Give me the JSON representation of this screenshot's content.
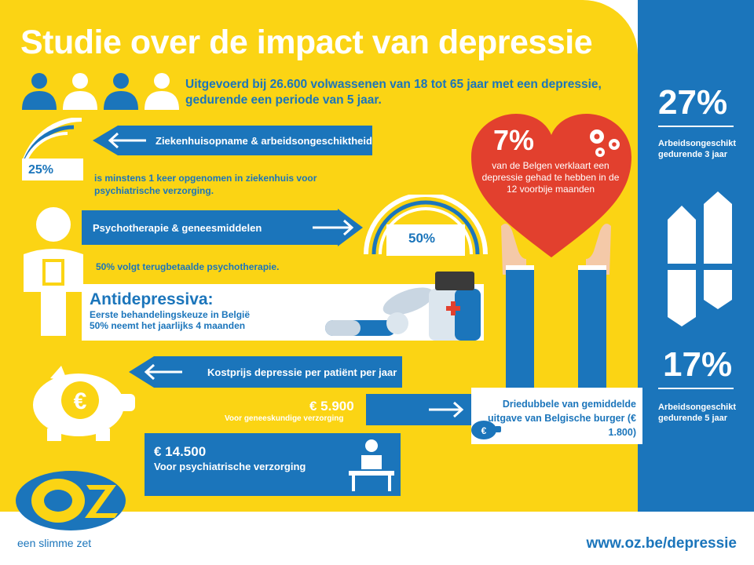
{
  "title": "Studie over de impact van depressie",
  "intro": "Uitgevoerd bij 26.600 volwassenen van 18 tot 65 jaar met een depressie, gedurende een periode van 5 jaar.",
  "hospital": {
    "bar_label": "Ziekenhuisopname & arbeidsongeschiktheid",
    "percent": "25%",
    "percent_value": 0.25,
    "description": "is minstens 1 keer opgenomen in ziekenhuis voor psychiatrische verzorging."
  },
  "psycho": {
    "bar_label": "Psychotherapie & geneesmiddelen",
    "percent": "50%",
    "percent_value": 0.5,
    "description": "50% volgt terugbetaalde psychotherapie."
  },
  "antidepressants": {
    "title": "Antidepressiva:",
    "line1": "Eerste behandelingskeuze in België",
    "line2": "50% neemt het jaarlijks 4 maanden"
  },
  "cost": {
    "bar_label": "Kostprijs depressie per patiënt per jaar",
    "medical_amount": "€ 5.900",
    "medical_label": "Voor geneeskundige verzorging",
    "psych_amount": "€ 14.500",
    "psych_label": "Voor psychiatrische verzorging",
    "compare": "Driedubbele van gemiddelde uitgave van Belgische burger (€ 1.800)"
  },
  "heart": {
    "percent": "7%",
    "text": "van de Belgen verklaart een depressie gehad te hebben in de 12 voorbije maanden"
  },
  "side": {
    "stat1_percent": "27%",
    "stat1_text": "Arbeidsongeschikt gedurende 3 jaar",
    "stat2_percent": "17%",
    "stat2_text": "Arbeidsongeschikt gedurende 5 jaar"
  },
  "footer": {
    "slogan": "een slimme zet",
    "url": "www.oz.be/depressie",
    "logo_text": "OZ"
  },
  "colors": {
    "yellow": "#fbd414",
    "blue": "#1b75bb",
    "red": "#e2402e",
    "white": "#ffffff"
  }
}
